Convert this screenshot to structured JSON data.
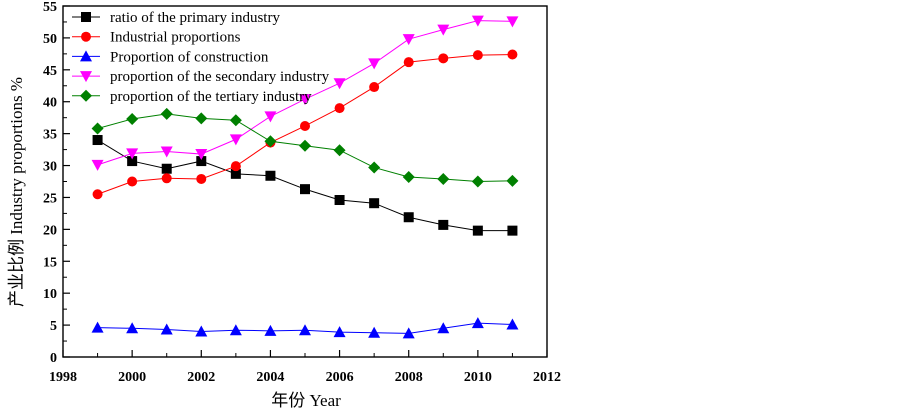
{
  "chart_data": {
    "type": "line",
    "title": "",
    "xlabel": "年份 Year",
    "ylabel": "产业比例 Industry proportions %",
    "xlim": [
      1998,
      2012
    ],
    "ylim": [
      0,
      55
    ],
    "xticks": [
      1998,
      2000,
      2002,
      2004,
      2006,
      2008,
      2010,
      2012
    ],
    "yticks": [
      0,
      5,
      10,
      15,
      20,
      25,
      30,
      35,
      40,
      45,
      50,
      55
    ],
    "x": [
      1999,
      2000,
      2001,
      2002,
      2003,
      2004,
      2005,
      2006,
      2007,
      2008,
      2009,
      2010,
      2011
    ],
    "legend_position": "top-left",
    "grid": false,
    "series": [
      {
        "name": "ratio of the primary industry",
        "color": "#000000",
        "marker": "square",
        "values": [
          34.0,
          30.7,
          29.5,
          30.7,
          28.7,
          28.4,
          26.3,
          24.6,
          24.1,
          21.9,
          20.7,
          19.8,
          19.8
        ]
      },
      {
        "name": "Industrial proportions",
        "color": "#ff0000",
        "marker": "circle",
        "values": [
          25.5,
          27.5,
          28.0,
          27.9,
          29.9,
          33.6,
          36.2,
          39.0,
          42.3,
          46.2,
          46.8,
          47.3,
          47.4
        ]
      },
      {
        "name": "Proportion of construction",
        "color": "#0000ff",
        "marker": "triangle-up",
        "values": [
          4.6,
          4.5,
          4.3,
          4.0,
          4.2,
          4.1,
          4.2,
          3.9,
          3.8,
          3.7,
          4.5,
          5.3,
          5.1
        ]
      },
      {
        "name": "proportion of the secondary industry",
        "color": "#ff00ff",
        "marker": "triangle-down",
        "values": [
          30.1,
          31.9,
          32.2,
          31.8,
          34.1,
          37.7,
          40.4,
          42.9,
          46.0,
          49.8,
          51.3,
          52.7,
          52.6
        ]
      },
      {
        "name": "proportion of the tertiary industry",
        "color": "#008000",
        "marker": "diamond",
        "values": [
          35.8,
          37.3,
          38.1,
          37.4,
          37.1,
          33.8,
          33.1,
          32.4,
          29.7,
          28.2,
          27.9,
          27.5,
          27.6
        ]
      }
    ]
  }
}
